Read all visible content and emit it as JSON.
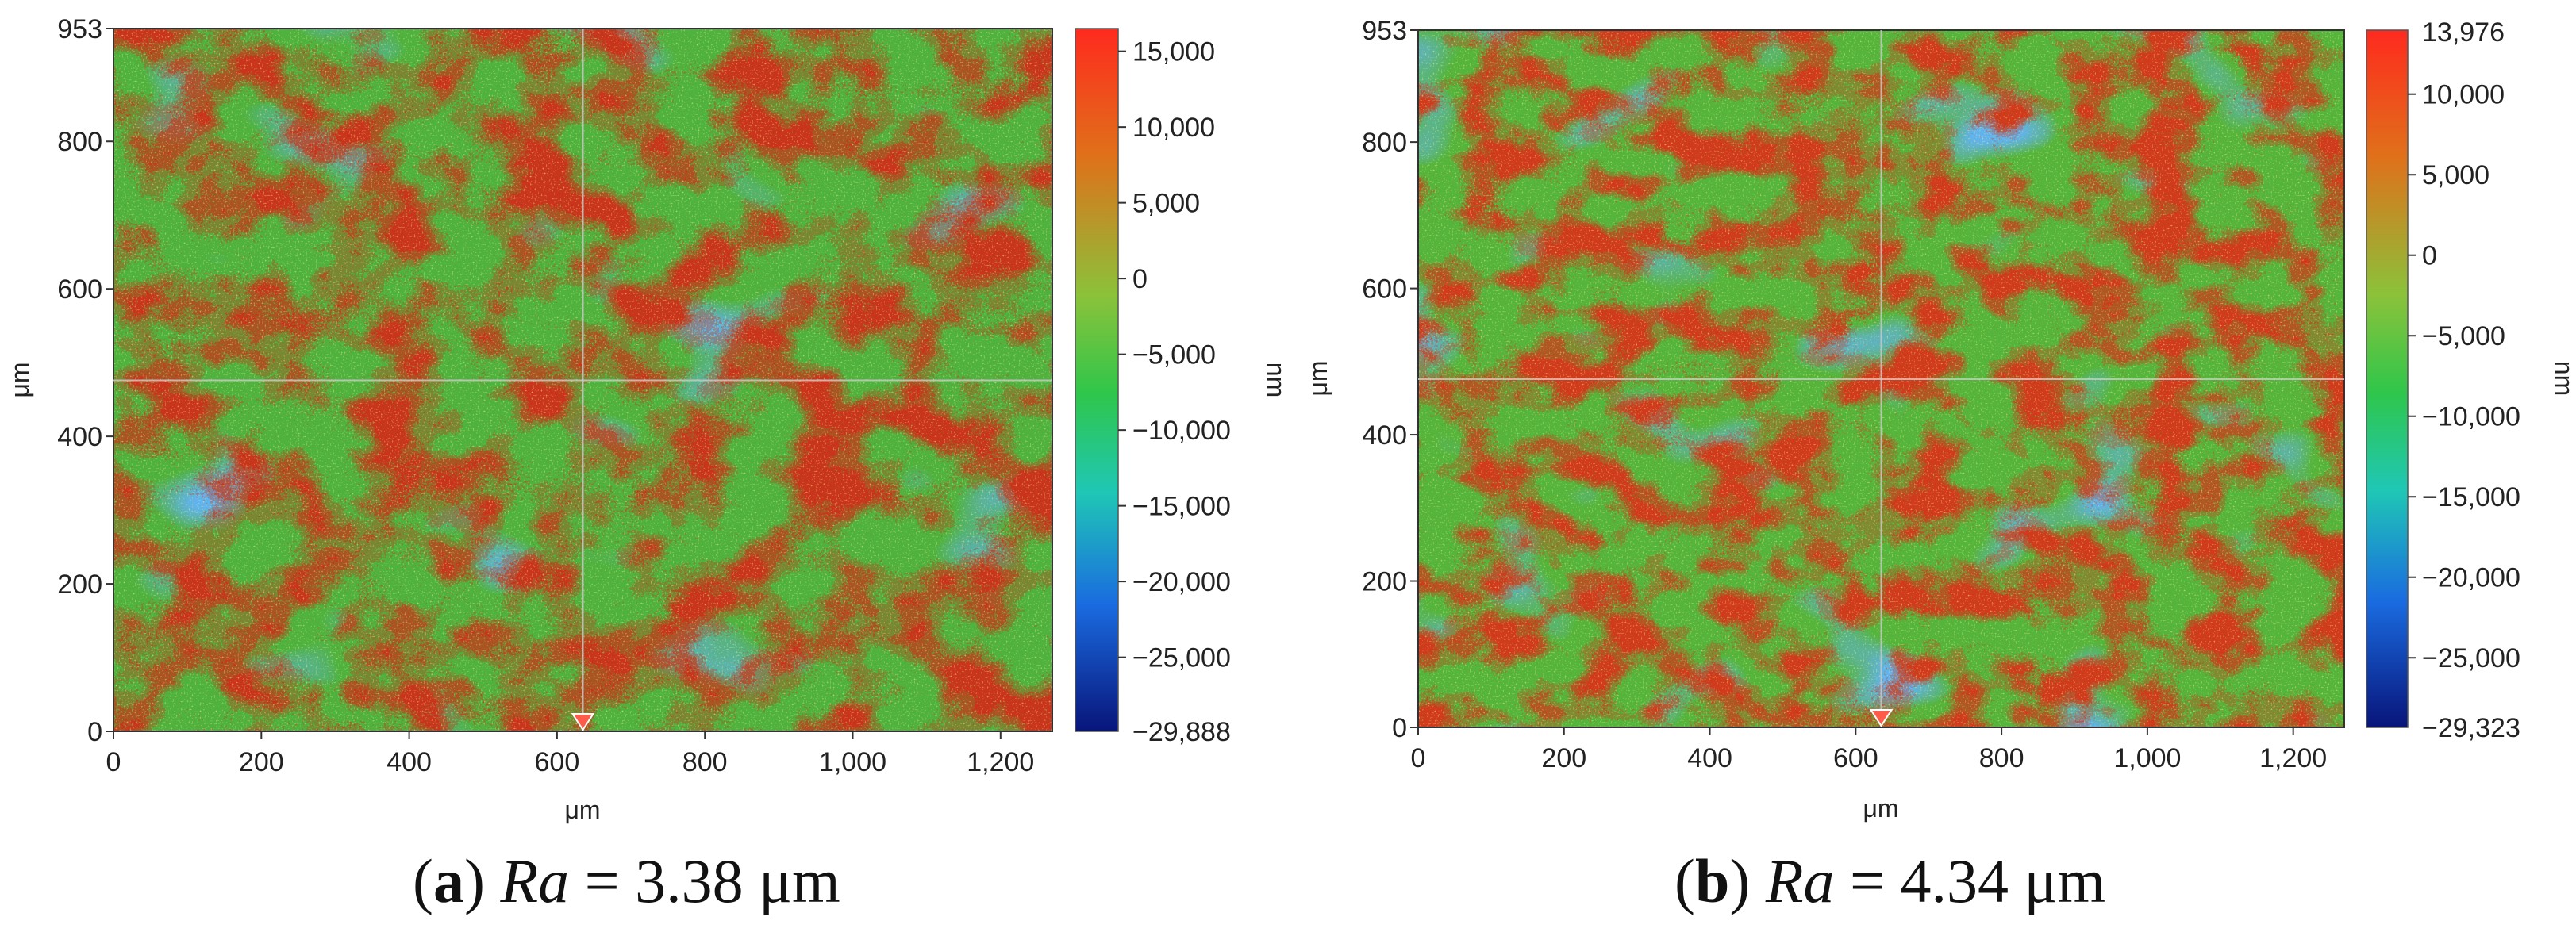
{
  "chart_data": [
    {
      "type": "heatmap",
      "panel_label": "a",
      "metric_label": "Ra",
      "metric_value": "3.38 μm",
      "xlabel": "μm",
      "ylabel": "μm",
      "xlim": [
        0,
        1270
      ],
      "ylim": [
        0,
        953
      ],
      "x_ticks": [
        "0",
        "200",
        "400",
        "600",
        "800",
        "1,000",
        "1,200"
      ],
      "y_ticks": [
        "0",
        "200",
        "400",
        "600",
        "800",
        "953"
      ],
      "colorbar": {
        "label": "nm",
        "range": [
          -29888,
          16500
        ],
        "max_label": "",
        "min_label": "−29,888",
        "ticks": [
          {
            "value": 15000,
            "label": "15,000"
          },
          {
            "value": 10000,
            "label": "10,000"
          },
          {
            "value": 5000,
            "label": "5,000"
          },
          {
            "value": 0,
            "label": "0"
          },
          {
            "value": -5000,
            "label": "−5,000"
          },
          {
            "value": -10000,
            "label": "−10,000"
          },
          {
            "value": -15000,
            "label": "−15,000"
          },
          {
            "value": -20000,
            "label": "−20,000"
          },
          {
            "value": -25000,
            "label": "−25,000"
          }
        ]
      },
      "crosshair": {
        "x": 635,
        "y": 476
      },
      "colormap": [
        "#ff2a1e",
        "#e07b15",
        "#7fbf2a",
        "#28c24a",
        "#1fc4a8",
        "#1a6be0",
        "#0a1a8c"
      ]
    },
    {
      "type": "heatmap",
      "panel_label": "b",
      "metric_label": "Ra",
      "metric_value": "4.34 μm",
      "xlabel": "μm",
      "ylabel": "μm",
      "xlim": [
        0,
        1270
      ],
      "ylim": [
        0,
        953
      ],
      "x_ticks": [
        "0",
        "200",
        "400",
        "600",
        "800",
        "1,000",
        "1,200"
      ],
      "y_ticks": [
        "0",
        "200",
        "400",
        "600",
        "800",
        "953"
      ],
      "colorbar": {
        "label": "nm",
        "range": [
          -29323,
          13976
        ],
        "max_label": "13,976",
        "min_label": "−29,323",
        "ticks": [
          {
            "value": 10000,
            "label": "10,000"
          },
          {
            "value": 5000,
            "label": "5,000"
          },
          {
            "value": 0,
            "label": "0"
          },
          {
            "value": -5000,
            "label": "−5,000"
          },
          {
            "value": -10000,
            "label": "−10,000"
          },
          {
            "value": -15000,
            "label": "−15,000"
          },
          {
            "value": -20000,
            "label": "−20,000"
          },
          {
            "value": -25000,
            "label": "−25,000"
          }
        ]
      },
      "crosshair": {
        "x": 635,
        "y": 476
      },
      "colormap": [
        "#ff2a1e",
        "#e07b15",
        "#7fbf2a",
        "#28c24a",
        "#1fc4a8",
        "#1a6be0",
        "#0a1a8c"
      ]
    }
  ]
}
